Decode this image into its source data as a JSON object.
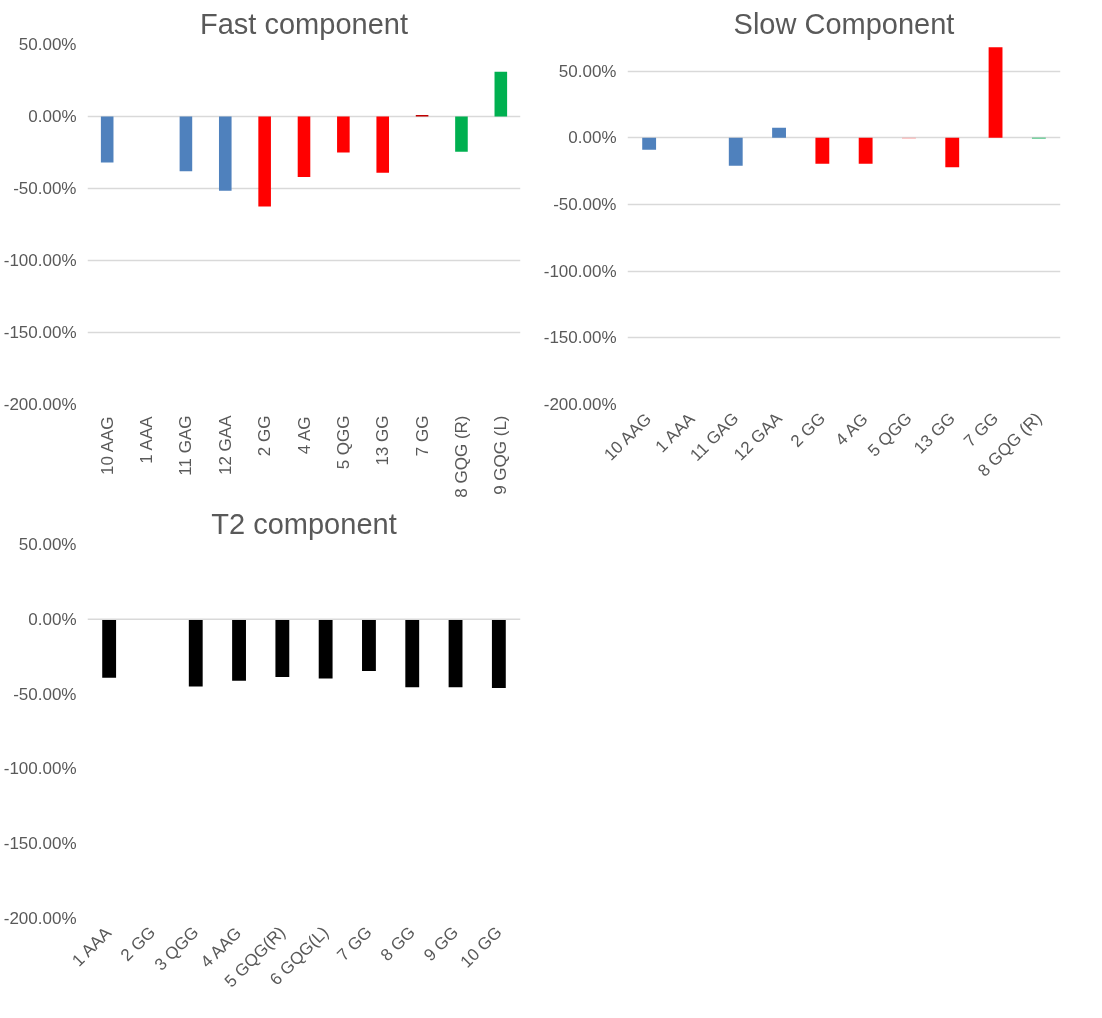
{
  "chart_data": [
    {
      "type": "bar",
      "title": "Fast component",
      "categories": [
        "10 AAG",
        "1 AAA",
        "11 GAG",
        "12 GAA",
        "2 GG",
        "4 AG",
        "5 QGG",
        "13 GG",
        "7 GG",
        "8 GQG (R)",
        "9 GQG (L)"
      ],
      "values": [
        -32,
        null,
        -38,
        -51.5,
        -62.5,
        -42,
        -25,
        -39,
        1,
        -24.5,
        31
      ],
      "colors": [
        "#4f81bd",
        "#4f81bd",
        "#4f81bd",
        "#4f81bd",
        "#ff0000",
        "#ff0000",
        "#ff0000",
        "#ff0000",
        "#c00000",
        "#00b050",
        "#00b050"
      ],
      "ylim": [
        -200,
        50
      ],
      "yticks": [
        {
          "value": -200,
          "label": "-200.00%"
        },
        {
          "value": -150,
          "label": "-150.00%"
        },
        {
          "value": -100,
          "label": "-100.00%"
        },
        {
          "value": -50,
          "label": "-50.00%"
        },
        {
          "value": 0,
          "label": "0.00%"
        },
        {
          "value": 50,
          "label": "50.00%"
        }
      ],
      "grid": "y"
    },
    {
      "type": "bar",
      "title": "Slow Component",
      "categories": [
        "10 AAG",
        "1 AAA",
        "11 GAG",
        "12 GAA",
        "2 GG",
        "4 AG",
        "5 QGG",
        "13 GG",
        "7 GG",
        "8 GQG (R)"
      ],
      "values": [
        -9,
        null,
        -21,
        7.5,
        -19.5,
        -19.5,
        -0.5,
        -22,
        68,
        -0.5
      ],
      "colors": [
        "#4f81bd",
        "#4f81bd",
        "#4f81bd",
        "#4f81bd",
        "#ff0000",
        "#ff0000",
        "#ff9999",
        "#ff0000",
        "#ff0000",
        "#00b050"
      ],
      "ylim": [
        -200,
        70
      ],
      "yticks": [
        {
          "value": -200,
          "label": "-200.00%"
        },
        {
          "value": -150,
          "label": "-150.00%"
        },
        {
          "value": -100,
          "label": "-100.00%"
        },
        {
          "value": -50,
          "label": "-50.00%"
        },
        {
          "value": 0,
          "label": "0.00%"
        },
        {
          "value": 50,
          "label": "50.00%"
        }
      ],
      "grid": "y"
    },
    {
      "type": "bar",
      "title": "T2 component",
      "categories": [
        "1 AAA",
        "2 GG",
        "3 QGG",
        "4 AAG",
        "5 GQG(R)",
        "6 GQG(L)",
        "7 GG",
        "8 GG",
        "9 GG",
        "10 GG"
      ],
      "values": [
        -39,
        null,
        -45,
        -41,
        -38.5,
        -39.5,
        -34.5,
        -45.5,
        -45.5,
        -46
      ],
      "colors": [
        "#000000",
        "#000000",
        "#000000",
        "#000000",
        "#000000",
        "#000000",
        "#000000",
        "#000000",
        "#000000",
        "#000000"
      ],
      "ylim": [
        -200,
        50
      ],
      "yticks": [
        {
          "value": -200,
          "label": "-200.00%"
        },
        {
          "value": -150,
          "label": "-150.00%"
        },
        {
          "value": -100,
          "label": "-100.00%"
        },
        {
          "value": -50,
          "label": "-50.00%"
        },
        {
          "value": 0,
          "label": "0.00%"
        },
        {
          "value": 50,
          "label": "50.00%"
        }
      ],
      "grid": false,
      "ref_lines": [
        {
          "axis": "y",
          "value": 0,
          "color": "#d9d9d9"
        }
      ]
    }
  ]
}
